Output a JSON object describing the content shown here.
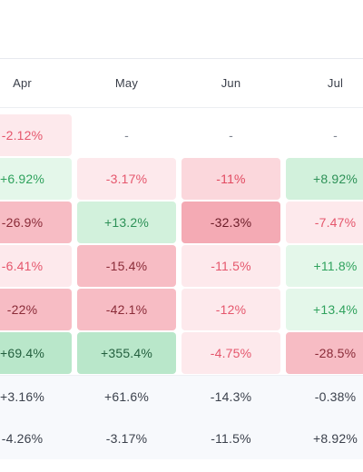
{
  "columns": [
    "Apr",
    "May",
    "Jun",
    "Jul"
  ],
  "rows": [
    {
      "cells": [
        {
          "text": "-2.12%",
          "tone": "neg-l1"
        },
        {
          "text": "-",
          "tone": "none"
        },
        {
          "text": "-",
          "tone": "none"
        },
        {
          "text": "-",
          "tone": "none"
        }
      ]
    },
    {
      "cells": [
        {
          "text": "+6.92%",
          "tone": "pos-l1"
        },
        {
          "text": "-3.17%",
          "tone": "neg-l1"
        },
        {
          "text": "-11%",
          "tone": "neg-l2"
        },
        {
          "text": "+8.92%",
          "tone": "pos-l2"
        }
      ]
    },
    {
      "cells": [
        {
          "text": "-26.9%",
          "tone": "neg-l3"
        },
        {
          "text": "+13.2%",
          "tone": "pos-l2"
        },
        {
          "text": "-32.3%",
          "tone": "neg-dark"
        },
        {
          "text": "-7.47%",
          "tone": "neg-l1"
        }
      ]
    },
    {
      "cells": [
        {
          "text": "-6.41%",
          "tone": "neg-l1"
        },
        {
          "text": "-15.4%",
          "tone": "neg-l3"
        },
        {
          "text": "-11.5%",
          "tone": "neg-l1"
        },
        {
          "text": "+11.8%",
          "tone": "pos-l1"
        }
      ]
    },
    {
      "cells": [
        {
          "text": "-22%",
          "tone": "neg-l3"
        },
        {
          "text": "-42.1%",
          "tone": "neg-l3"
        },
        {
          "text": "-12%",
          "tone": "neg-l1"
        },
        {
          "text": "+13.4%",
          "tone": "pos-l1"
        }
      ]
    },
    {
      "cells": [
        {
          "text": "+69.4%",
          "tone": "pos-l3"
        },
        {
          "text": "+355.4%",
          "tone": "pos-l3"
        },
        {
          "text": "-4.75%",
          "tone": "neg-l1"
        },
        {
          "text": "-28.5%",
          "tone": "neg-l3"
        }
      ]
    }
  ],
  "summary_rows": [
    {
      "cells": [
        "+3.16%",
        "+61.6%",
        "-14.3%",
        "-0.38%"
      ]
    },
    {
      "cells": [
        "-4.26%",
        "-3.17%",
        "-11.5%",
        "+8.92%"
      ]
    }
  ],
  "colors": {
    "positive_light": "#e4f7ea",
    "positive_strong": "#b9e7ca",
    "negative_light": "#fde9ec",
    "negative_strong": "#f4aab4",
    "text_positive": "#2fa25d",
    "text_negative": "#e14a60"
  }
}
